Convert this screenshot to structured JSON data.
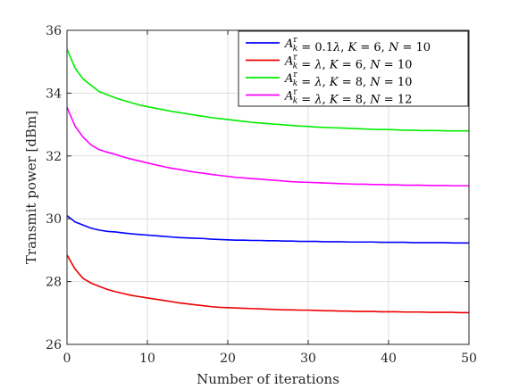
{
  "chart_data": {
    "type": "line",
    "xlabel": "Number of iterations",
    "ylabel": "Transmit power [dBm]",
    "xlim": [
      0,
      50
    ],
    "ylim": [
      26,
      36
    ],
    "xticks": [
      0,
      10,
      20,
      30,
      40,
      50
    ],
    "yticks": [
      26,
      28,
      30,
      32,
      34,
      36
    ],
    "grid": true,
    "legend_position": "top-right",
    "x": [
      0,
      1,
      2,
      3,
      4,
      5,
      6,
      7,
      8,
      9,
      10,
      11,
      12,
      13,
      14,
      15,
      16,
      17,
      18,
      19,
      20,
      21,
      22,
      23,
      24,
      25,
      26,
      27,
      28,
      29,
      30,
      31,
      32,
      33,
      34,
      35,
      36,
      37,
      38,
      39,
      40,
      41,
      42,
      43,
      44,
      45,
      46,
      47,
      48,
      49,
      50
    ],
    "series": [
      {
        "name": "A_k^r = 0.1λ, K = 6, N = 10",
        "legend": [
          {
            "text": "A",
            "italic": true
          },
          {
            "text": "r",
            "sup": true
          },
          {
            "text": "k",
            "sub": true,
            "italic": true
          },
          {
            "text": " = 0.1"
          },
          {
            "text": "λ",
            "italic": true
          },
          {
            "text": ", "
          },
          {
            "text": "K",
            "italic": true
          },
          {
            "text": " = 6, "
          },
          {
            "text": "N",
            "italic": true
          },
          {
            "text": " = 10"
          }
        ],
        "color": "#0000ff",
        "values": [
          30.1,
          29.9,
          29.8,
          29.7,
          29.64,
          29.6,
          29.58,
          29.55,
          29.52,
          29.5,
          29.48,
          29.46,
          29.44,
          29.42,
          29.4,
          29.39,
          29.38,
          29.37,
          29.35,
          29.34,
          29.33,
          29.32,
          29.32,
          29.31,
          29.31,
          29.3,
          29.3,
          29.29,
          29.29,
          29.28,
          29.28,
          29.28,
          29.27,
          29.27,
          29.27,
          29.26,
          29.26,
          29.26,
          29.26,
          29.25,
          29.25,
          29.25,
          29.25,
          29.24,
          29.24,
          29.24,
          29.24,
          29.24,
          29.23,
          29.23,
          29.23
        ]
      },
      {
        "name": "A_k^r = λ, K = 6, N = 10",
        "legend": [
          {
            "text": "A",
            "italic": true
          },
          {
            "text": "r",
            "sup": true
          },
          {
            "text": "k",
            "sub": true,
            "italic": true
          },
          {
            "text": " = "
          },
          {
            "text": "λ",
            "italic": true
          },
          {
            "text": ", "
          },
          {
            "text": "K",
            "italic": true
          },
          {
            "text": " = 6, "
          },
          {
            "text": "N",
            "italic": true
          },
          {
            "text": " = 10"
          }
        ],
        "color": "#ee0000",
        "values": [
          28.85,
          28.4,
          28.1,
          27.95,
          27.85,
          27.75,
          27.68,
          27.62,
          27.56,
          27.52,
          27.48,
          27.44,
          27.4,
          27.36,
          27.32,
          27.29,
          27.26,
          27.23,
          27.2,
          27.18,
          27.17,
          27.16,
          27.15,
          27.14,
          27.13,
          27.12,
          27.11,
          27.1,
          27.1,
          27.09,
          27.09,
          27.08,
          27.07,
          27.07,
          27.06,
          27.06,
          27.05,
          27.05,
          27.05,
          27.04,
          27.04,
          27.04,
          27.03,
          27.03,
          27.03,
          27.02,
          27.02,
          27.02,
          27.02,
          27.01,
          27.01
        ]
      },
      {
        "name": "A_k^r = λ, K = 8, N = 10",
        "legend": [
          {
            "text": "A",
            "italic": true
          },
          {
            "text": "r",
            "sup": true
          },
          {
            "text": "k",
            "sub": true,
            "italic": true
          },
          {
            "text": " = "
          },
          {
            "text": "λ",
            "italic": true
          },
          {
            "text": ", "
          },
          {
            "text": "K",
            "italic": true
          },
          {
            "text": " = 8, "
          },
          {
            "text": "N",
            "italic": true
          },
          {
            "text": " = 10"
          }
        ],
        "color": "#00ee00",
        "values": [
          35.4,
          34.8,
          34.45,
          34.25,
          34.05,
          33.95,
          33.85,
          33.77,
          33.7,
          33.62,
          33.57,
          33.52,
          33.47,
          33.42,
          33.38,
          33.34,
          33.3,
          33.26,
          33.22,
          33.19,
          33.16,
          33.13,
          33.1,
          33.07,
          33.05,
          33.03,
          33.01,
          32.99,
          32.97,
          32.95,
          32.94,
          32.92,
          32.91,
          32.9,
          32.89,
          32.88,
          32.87,
          32.86,
          32.85,
          32.84,
          32.84,
          32.83,
          32.82,
          32.82,
          32.81,
          32.81,
          32.81,
          32.8,
          32.8,
          32.8,
          32.8
        ]
      },
      {
        "name": "A_k^r = λ, K = 8, N = 12",
        "legend": [
          {
            "text": "A",
            "italic": true
          },
          {
            "text": "r",
            "sup": true
          },
          {
            "text": "k",
            "sub": true,
            "italic": true
          },
          {
            "text": " = "
          },
          {
            "text": "λ",
            "italic": true
          },
          {
            "text": ", "
          },
          {
            "text": "K",
            "italic": true
          },
          {
            "text": " = 8, "
          },
          {
            "text": "N",
            "italic": true
          },
          {
            "text": " = 12"
          }
        ],
        "color": "#ff00ff",
        "values": [
          33.55,
          32.95,
          32.6,
          32.35,
          32.2,
          32.12,
          32.05,
          31.97,
          31.9,
          31.84,
          31.78,
          31.72,
          31.66,
          31.61,
          31.57,
          31.52,
          31.48,
          31.45,
          31.41,
          31.38,
          31.35,
          31.32,
          31.3,
          31.28,
          31.26,
          31.24,
          31.22,
          31.2,
          31.18,
          31.17,
          31.16,
          31.15,
          31.14,
          31.13,
          31.12,
          31.11,
          31.1,
          31.1,
          31.09,
          31.09,
          31.08,
          31.08,
          31.07,
          31.07,
          31.07,
          31.06,
          31.06,
          31.06,
          31.05,
          31.05,
          31.05
        ]
      }
    ]
  }
}
